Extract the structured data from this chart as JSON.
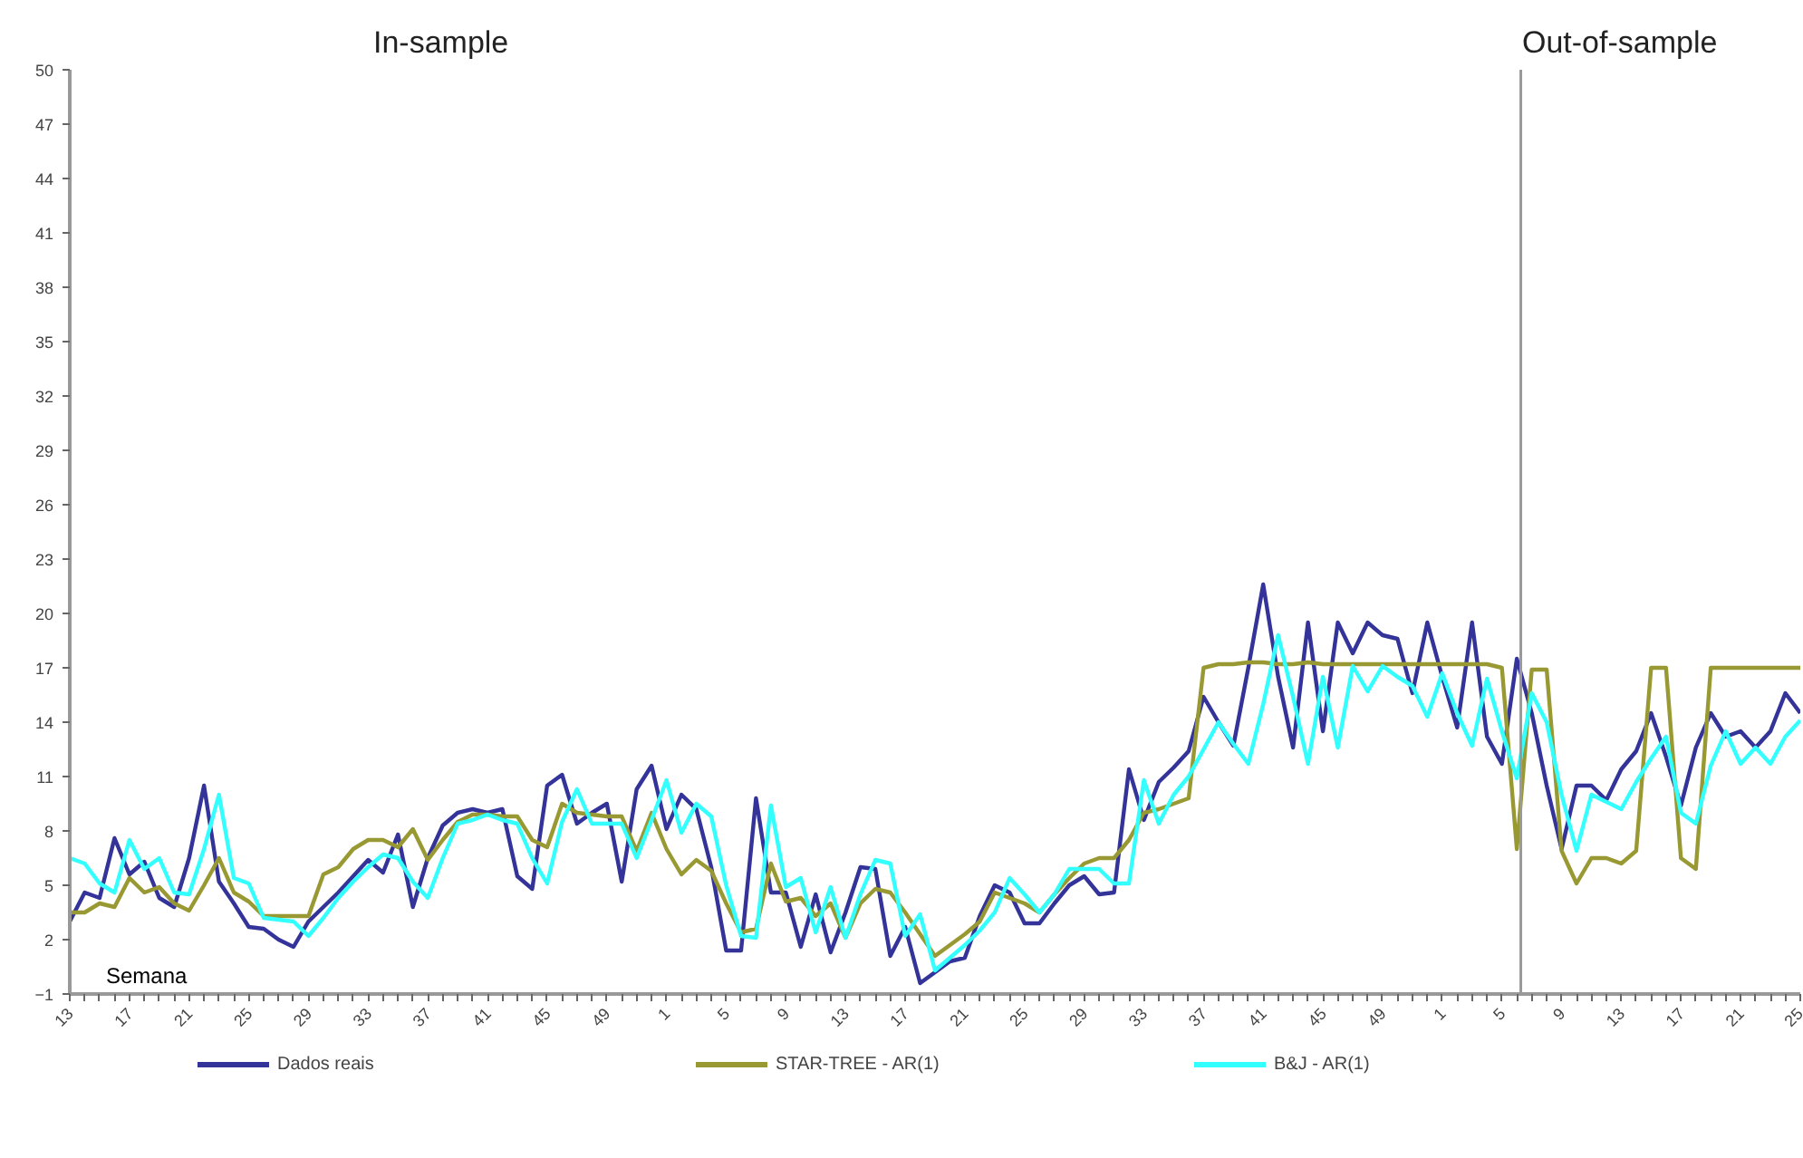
{
  "chart_data": {
    "type": "line",
    "xlabel": "Semana",
    "annotations": [
      "In-sample",
      "Out-of-sample"
    ],
    "categories": [
      "13",
      null,
      null,
      null,
      "17",
      null,
      null,
      null,
      "21",
      null,
      null,
      null,
      "25",
      null,
      null,
      null,
      "29",
      null,
      null,
      null,
      "33",
      null,
      null,
      null,
      "37",
      null,
      null,
      null,
      "41",
      null,
      null,
      null,
      "45",
      null,
      null,
      null,
      "49",
      null,
      null,
      null,
      "1",
      null,
      null,
      null,
      "5",
      null,
      null,
      null,
      "9",
      null,
      null,
      null,
      "13",
      null,
      null,
      null,
      "17",
      null,
      null,
      null,
      "21",
      null,
      null,
      null,
      "25",
      null,
      null,
      null,
      "29",
      null,
      null,
      null,
      "33",
      null,
      null,
      null,
      "37",
      null,
      null,
      null,
      "41",
      null,
      null,
      null,
      "45",
      null,
      null,
      null,
      "49",
      null,
      null,
      null,
      "1",
      null,
      null,
      null,
      "5",
      null,
      null,
      null,
      "9",
      null,
      null,
      null,
      "13",
      null,
      null,
      null,
      "17",
      null,
      null,
      null,
      "21",
      null,
      null,
      null,
      "25"
    ],
    "series": [
      {
        "name": "Dados reais",
        "color": "#333399",
        "values": [
          3.0,
          4.6,
          4.3,
          7.6,
          5.6,
          6.3,
          4.3,
          3.8,
          6.5,
          10.5,
          5.2,
          4.0,
          2.7,
          2.6,
          2.0,
          1.6,
          3.0,
          3.8,
          4.6,
          5.5,
          6.4,
          5.7,
          7.8,
          3.8,
          6.5,
          8.3,
          9.0,
          9.2,
          9.0,
          9.2,
          5.5,
          4.8,
          10.5,
          11.1,
          8.4,
          9.0,
          9.5,
          5.2,
          10.3,
          11.6,
          8.1,
          10.0,
          9.2,
          6.0,
          1.4,
          1.4,
          9.8,
          4.6,
          4.6,
          1.6,
          4.5,
          1.3,
          3.5,
          6.0,
          5.9,
          1.1,
          2.7,
          -0.4,
          0.2,
          0.8,
          1.0,
          3.3,
          5.0,
          4.6,
          2.9,
          2.9,
          4.0,
          5.0,
          5.5,
          4.5,
          4.6,
          11.4,
          8.6,
          10.7,
          11.5,
          12.4,
          15.4,
          14.0,
          12.7,
          17.0,
          21.6,
          16.5,
          12.6,
          19.5,
          13.5,
          19.5,
          17.8,
          19.5,
          18.8,
          18.6,
          15.6,
          19.5,
          16.5,
          13.7,
          19.5,
          13.2,
          11.7,
          17.5,
          14.5,
          10.5,
          7.0,
          10.5,
          10.5,
          9.7,
          11.4,
          12.4,
          14.5,
          12.1,
          9.4,
          12.6,
          14.5,
          13.2,
          13.5,
          12.6,
          13.5,
          15.6,
          14.5
        ]
      },
      {
        "name": "STAR-TREE - AR(1)",
        "color": "#999933",
        "values": [
          3.5,
          3.5,
          4.0,
          3.8,
          5.4,
          4.6,
          4.9,
          4.0,
          3.6,
          5.0,
          6.5,
          4.6,
          4.1,
          3.3,
          3.3,
          3.3,
          3.3,
          5.6,
          6.0,
          7.0,
          7.5,
          7.5,
          7.1,
          8.1,
          6.4,
          7.5,
          8.5,
          8.9,
          8.9,
          8.8,
          8.8,
          7.5,
          7.1,
          9.5,
          9.0,
          8.9,
          8.8,
          8.8,
          6.9,
          9.0,
          7.0,
          5.6,
          6.4,
          5.8,
          4.0,
          2.4,
          2.6,
          6.2,
          4.1,
          4.3,
          3.3,
          4.0,
          2.1,
          4.0,
          4.8,
          4.6,
          3.5,
          2.3,
          1.1,
          1.7,
          2.3,
          3.0,
          4.6,
          4.3,
          4.0,
          3.5,
          4.5,
          5.4,
          6.2,
          6.5,
          6.5,
          7.5,
          9.0,
          9.2,
          9.5,
          9.8,
          17.0,
          17.2,
          17.2,
          17.3,
          17.3,
          17.2,
          17.2,
          17.3,
          17.2,
          17.2,
          17.2,
          17.2,
          17.2,
          17.2,
          17.2,
          17.2,
          17.2,
          17.2,
          17.2,
          17.2,
          17.0,
          7.0,
          16.9,
          16.9,
          6.9,
          5.1,
          6.5,
          6.5,
          6.2,
          6.9,
          17.0,
          17.0,
          6.5,
          5.9,
          17.0,
          17.0,
          17.0,
          17.0,
          17.0,
          17.0,
          17.0
        ]
      },
      {
        "name": "B&J - AR(1)",
        "color": "#33ffff",
        "values": [
          6.5,
          6.2,
          5.1,
          4.6,
          7.5,
          5.9,
          6.5,
          4.6,
          4.5,
          7.0,
          10.0,
          5.4,
          5.1,
          3.2,
          3.1,
          3.0,
          2.2,
          3.2,
          4.3,
          5.2,
          6.0,
          6.7,
          6.5,
          5.2,
          4.3,
          6.5,
          8.4,
          8.6,
          8.9,
          8.6,
          8.4,
          6.5,
          5.1,
          8.5,
          10.3,
          8.4,
          8.4,
          8.4,
          6.5,
          8.6,
          10.8,
          7.9,
          9.5,
          8.8,
          5.0,
          2.2,
          2.1,
          9.4,
          4.9,
          5.4,
          2.4,
          4.9,
          2.1,
          4.5,
          6.4,
          6.2,
          2.2,
          3.4,
          0.3,
          1.0,
          1.7,
          2.5,
          3.5,
          5.4,
          4.5,
          3.5,
          4.5,
          5.9,
          5.9,
          5.9,
          5.1,
          5.1,
          10.8,
          8.4,
          10.0,
          11.0,
          12.5,
          14.0,
          12.8,
          11.7,
          15.0,
          18.8,
          15.4,
          11.7,
          16.5,
          12.6,
          17.1,
          15.7,
          17.1,
          16.5,
          16.0,
          14.3,
          16.7,
          14.5,
          12.7,
          16.4,
          13.5,
          10.9,
          15.6,
          14.0,
          10.0,
          6.9,
          10.0,
          9.6,
          9.2,
          10.7,
          12.0,
          13.2,
          9.0,
          8.4,
          11.6,
          13.5,
          11.7,
          12.6,
          11.7,
          13.2,
          14.1
        ]
      }
    ],
    "ylim": [
      -1,
      50
    ],
    "yticks": [
      -1,
      2,
      5,
      8,
      11,
      14,
      17,
      20,
      23,
      26,
      29,
      32,
      35,
      38,
      41,
      44,
      47,
      50
    ],
    "grid": false,
    "legend": "bottom",
    "marker": "none",
    "line_style": "solid"
  }
}
